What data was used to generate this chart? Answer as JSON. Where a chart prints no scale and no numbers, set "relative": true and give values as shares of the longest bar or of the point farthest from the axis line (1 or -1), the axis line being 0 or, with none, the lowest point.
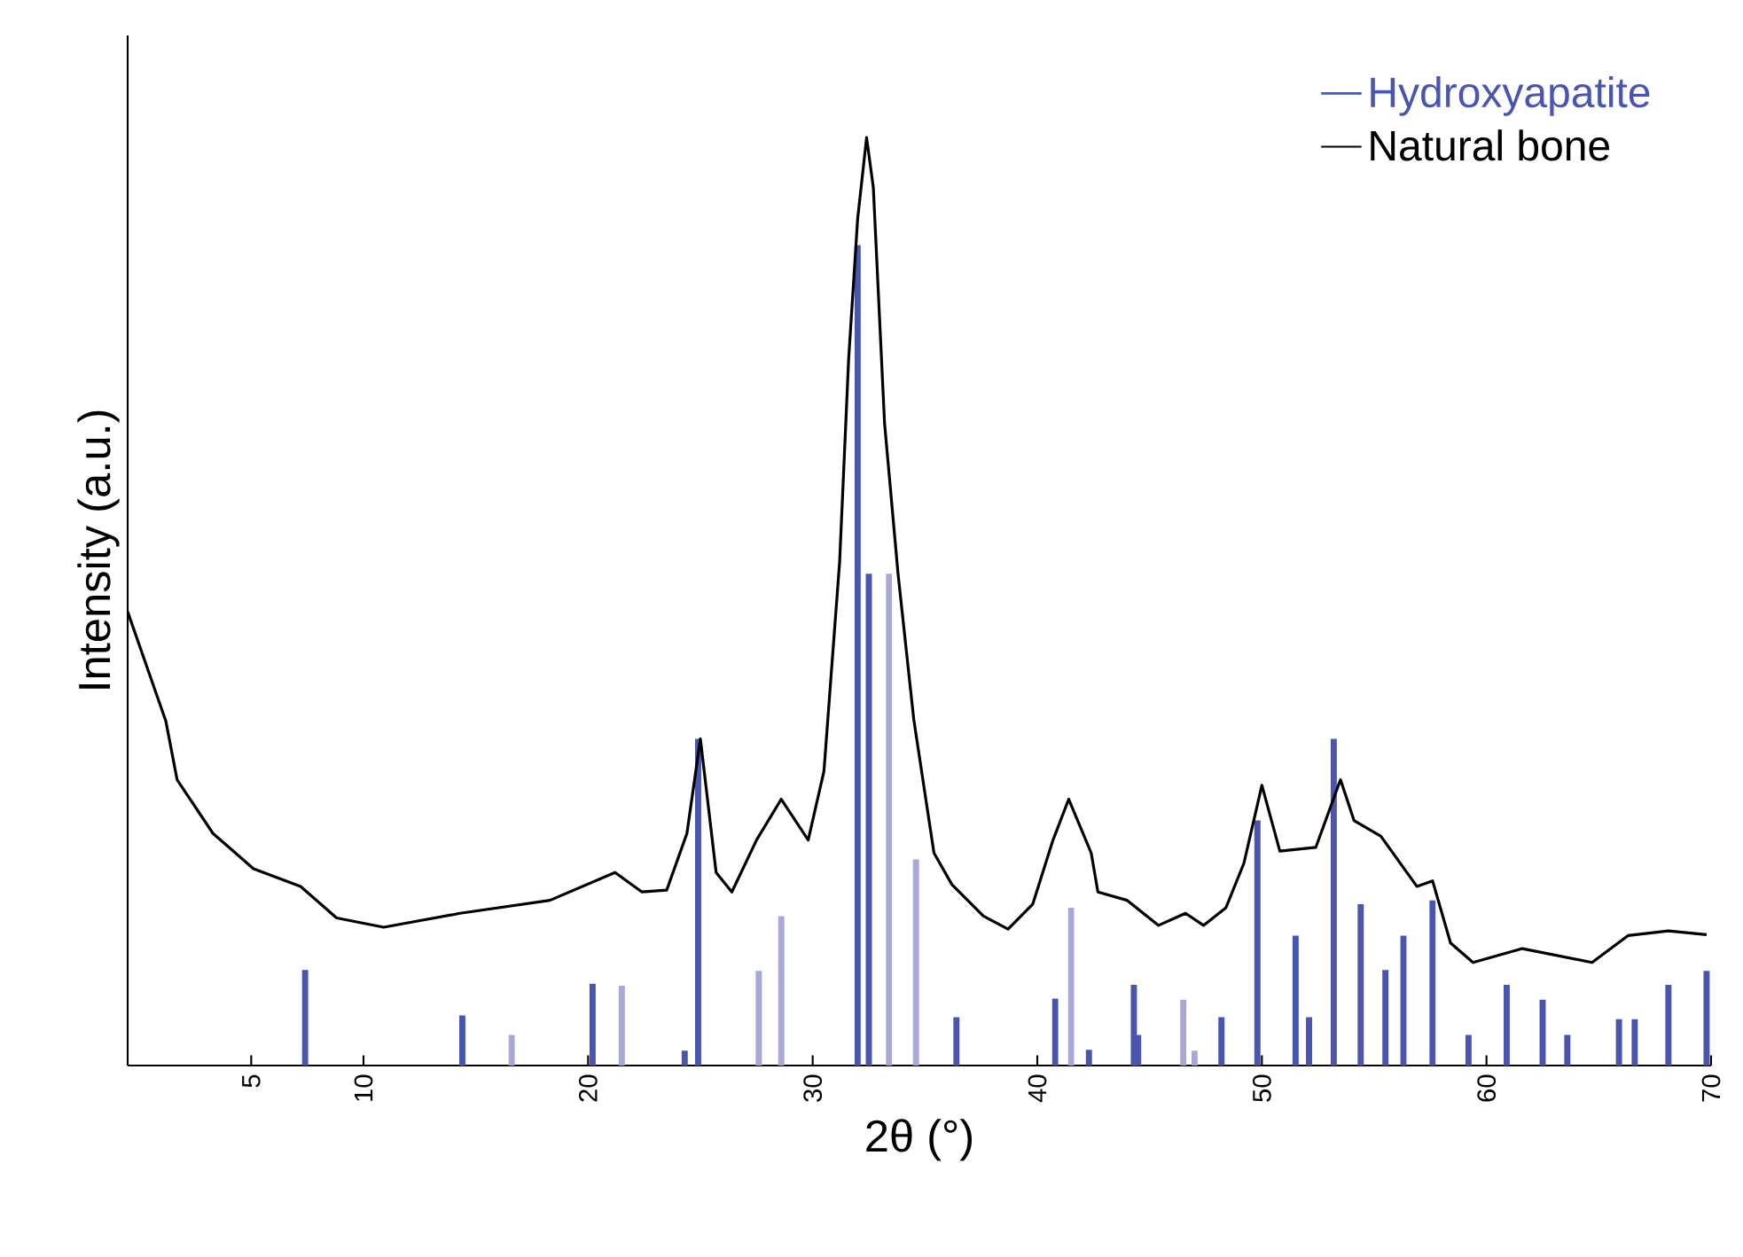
{
  "chart_data": {
    "type": "line",
    "relative": true,
    "xlabel": "2θ (°)",
    "ylabel": "Intensity (a.u.)",
    "xlim": [
      -0.5,
      70
    ],
    "xticks": [
      5,
      10,
      20,
      30,
      40,
      50,
      60,
      70
    ],
    "legend": "top right",
    "series": [
      {
        "name": "Hydroxyapatite",
        "type": "bar",
        "color": "#4a55b0",
        "x": [
          7.4,
          14.4,
          16.6,
          20.2,
          21.5,
          24.3,
          24.9,
          27.6,
          28.6,
          32.0,
          32.5,
          33.4,
          34.6,
          36.4,
          40.8,
          41.5,
          42.3,
          44.3,
          44.5,
          46.5,
          47.0,
          48.2,
          49.8,
          51.5,
          52.1,
          53.2,
          54.4,
          55.5,
          56.3,
          57.6,
          59.2,
          60.9,
          62.5,
          63.6,
          65.9,
          66.6,
          68.1,
          69.8
        ],
        "values": [
          0.103,
          0.054,
          0.033,
          0.088,
          0.086,
          0.016,
          0.352,
          0.102,
          0.161,
          0.884,
          0.53,
          0.53,
          0.222,
          0.052,
          0.072,
          0.17,
          0.017,
          0.087,
          0.033,
          0.071,
          0.016,
          0.052,
          0.264,
          0.14,
          0.052,
          0.352,
          0.174,
          0.103,
          0.14,
          0.178,
          0.033,
          0.087,
          0.071,
          0.033,
          0.05,
          0.05,
          0.087,
          0.102
        ],
        "colors": [
          "#4a55b0",
          "#4a55b0",
          "#a8a8d8",
          "#4a55b0",
          "#a8a8d8",
          "#4a55b0",
          "#4a55b0",
          "#a8a8d8",
          "#a8a8d8",
          "#4a55b0",
          "#4a55b0",
          "#a8a8d8",
          "#a8a8d8",
          "#4a55b0",
          "#4a55b0",
          "#a8a8d8",
          "#4a55b0",
          "#4a55b0",
          "#4a55b0",
          "#a8a8d8",
          "#a8a8d8",
          "#4a55b0",
          "#4a55b0",
          "#4a55b0",
          "#4a55b0",
          "#4a55b0",
          "#4a55b0",
          "#4a55b0",
          "#4a55b0",
          "#4a55b0",
          "#4a55b0",
          "#4a55b0",
          "#4a55b0",
          "#4a55b0",
          "#4a55b0",
          "#4a55b0",
          "#4a55b0",
          "#4a55b0"
        ]
      },
      {
        "name": "Natural bone",
        "color": "#000000",
        "x": [
          -0.5,
          1.2,
          1.7,
          3.3,
          5.1,
          7.2,
          8.8,
          10.9,
          14.3,
          18.3,
          21.2,
          22.4,
          23.5,
          24.4,
          25.0,
          25.7,
          26.4,
          27.5,
          28.6,
          29.8,
          30.5,
          31.2,
          31.6,
          32.0,
          32.4,
          32.7,
          33.2,
          33.8,
          34.5,
          35.4,
          36.2,
          37.6,
          38.7,
          39.8,
          40.7,
          41.4,
          42.4,
          42.7,
          44.0,
          45.4,
          46.6,
          47.4,
          48.4,
          49.2,
          50.0,
          50.8,
          52.4,
          53.5,
          54.1,
          55.3,
          56.9,
          57.6,
          58.4,
          59.4,
          61.6,
          64.7,
          66.3,
          68.1,
          69.8
        ],
        "values": [
          0.489,
          0.371,
          0.308,
          0.25,
          0.212,
          0.193,
          0.159,
          0.149,
          0.164,
          0.178,
          0.208,
          0.187,
          0.189,
          0.25,
          0.352,
          0.208,
          0.187,
          0.243,
          0.287,
          0.243,
          0.317,
          0.543,
          0.761,
          0.912,
          1.0,
          0.946,
          0.692,
          0.53,
          0.373,
          0.229,
          0.195,
          0.161,
          0.147,
          0.174,
          0.243,
          0.287,
          0.229,
          0.187,
          0.178,
          0.151,
          0.164,
          0.151,
          0.17,
          0.218,
          0.302,
          0.231,
          0.235,
          0.308,
          0.264,
          0.247,
          0.193,
          0.199,
          0.132,
          0.111,
          0.126,
          0.111,
          0.14,
          0.145,
          0.141
        ]
      }
    ]
  }
}
